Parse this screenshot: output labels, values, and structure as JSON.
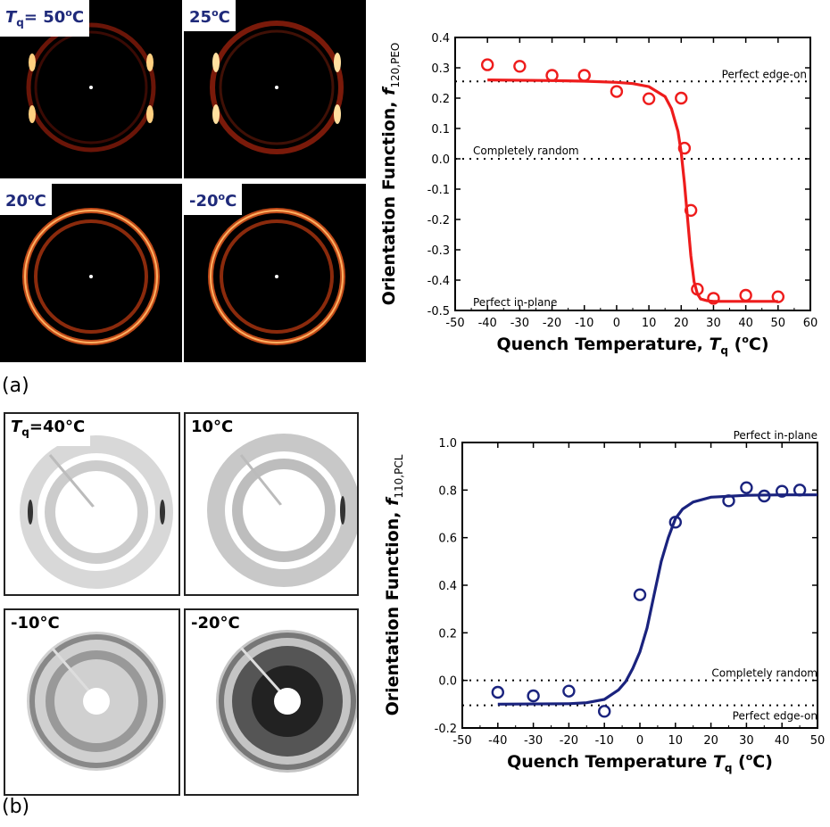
{
  "panels": {
    "a": {
      "label": "(a)",
      "images": [
        {
          "tag_prefix": "T",
          "tag_sub": "q",
          "tag_suffix": "= 50",
          "tag_unit": "C"
        },
        {
          "tag": "25",
          "tag_unit": "C"
        },
        {
          "tag": "20",
          "tag_unit": "C"
        },
        {
          "tag": "-20",
          "tag_unit": "C"
        }
      ]
    },
    "b": {
      "label": "(b)",
      "images": [
        {
          "tag_prefix": "T",
          "tag_sub": "q",
          "tag_suffix": "=40°C"
        },
        {
          "tag": "10°C"
        },
        {
          "tag": "-10°C"
        },
        {
          "tag": "-20°C"
        }
      ]
    }
  },
  "chart_data": [
    {
      "type": "scatter",
      "series": [
        {
          "name": "",
          "marker": "circle-open",
          "color": "#ee1c1c",
          "x": [
            -40,
            -30,
            -20,
            -10,
            0,
            10,
            20,
            21,
            23,
            25,
            30,
            40,
            50
          ],
          "y": [
            0.31,
            0.305,
            0.275,
            0.275,
            0.222,
            0.198,
            0.2,
            0.035,
            -0.17,
            -0.43,
            -0.46,
            -0.45,
            -0.455
          ]
        },
        {
          "name": "",
          "type": "line",
          "color": "#ee1c1c",
          "x": [
            -40,
            -20,
            -10,
            0,
            5,
            10,
            15,
            17,
            19,
            20,
            21,
            22,
            23,
            24,
            25,
            26,
            28,
            30,
            40,
            50
          ],
          "y": [
            0.26,
            0.258,
            0.256,
            0.252,
            0.248,
            0.238,
            0.205,
            0.165,
            0.09,
            0.02,
            -0.08,
            -0.2,
            -0.32,
            -0.405,
            -0.445,
            -0.462,
            -0.468,
            -0.47,
            -0.47,
            -0.47
          ]
        }
      ],
      "reference_lines": [
        {
          "y": 0.255,
          "label": "Perfect edge-on"
        },
        {
          "y": 0.0,
          "label": "Completely random"
        },
        {
          "y": -0.5,
          "label": "Perfect in-plane"
        }
      ],
      "xlabel": "Quench Temperature, T",
      "xlabel_sub": "q",
      "xlabel_unit": "C",
      "ylabel": "Orientation Function, f",
      "ylabel_sub": "120,PEO",
      "xlim": [
        -50,
        60
      ],
      "ylim": [
        -0.5,
        0.4
      ],
      "xticks": [
        "-50",
        "-40",
        "-30",
        "-20",
        "-10",
        "0",
        "10",
        "20",
        "30",
        "40",
        "50",
        "60"
      ],
      "yticks": [
        "-0.5",
        "-0.4",
        "-0.3",
        "-0.2",
        "-0.1",
        "0.0",
        "0.1",
        "0.2",
        "0.3",
        "0.4"
      ],
      "grid": false
    },
    {
      "type": "scatter",
      "series": [
        {
          "name": "",
          "marker": "circle-open",
          "color": "#1a237e",
          "x": [
            -40,
            -30,
            -20,
            -10,
            0,
            10,
            25,
            30,
            35,
            40,
            45
          ],
          "y": [
            -0.05,
            -0.065,
            -0.045,
            -0.13,
            0.36,
            0.665,
            0.755,
            0.81,
            0.775,
            0.795,
            0.8
          ]
        },
        {
          "name": "",
          "type": "line",
          "color": "#1a237e",
          "x": [
            -40,
            -20,
            -15,
            -10,
            -6,
            -4,
            -2,
            0,
            2,
            4,
            6,
            8,
            10,
            12,
            15,
            20,
            30,
            40,
            50
          ],
          "y": [
            -0.1,
            -0.098,
            -0.094,
            -0.08,
            -0.04,
            -0.005,
            0.05,
            0.12,
            0.22,
            0.36,
            0.5,
            0.6,
            0.68,
            0.72,
            0.75,
            0.77,
            0.778,
            0.78,
            0.78
          ]
        }
      ],
      "reference_lines": [
        {
          "y": 1.0,
          "label": "Perfect in-plane"
        },
        {
          "y": 0.0,
          "label": "Completely random"
        },
        {
          "y": -0.105,
          "label": "Perfect edge-on"
        }
      ],
      "xlabel": "Quench Temperature T",
      "xlabel_sub": "q",
      "xlabel_unit": "C",
      "ylabel": "Orientation Function, f",
      "ylabel_sub": "110,PCL",
      "xlim": [
        -50,
        50
      ],
      "ylim": [
        -0.2,
        1.0
      ],
      "xticks": [
        "-50",
        "-40",
        "-30",
        "-20",
        "-10",
        "0",
        "10",
        "20",
        "30",
        "40",
        "50"
      ],
      "yticks": [
        "-0.2",
        "0.0",
        "0.2",
        "0.4",
        "0.6",
        "0.8",
        "1.0"
      ],
      "grid": false
    }
  ]
}
